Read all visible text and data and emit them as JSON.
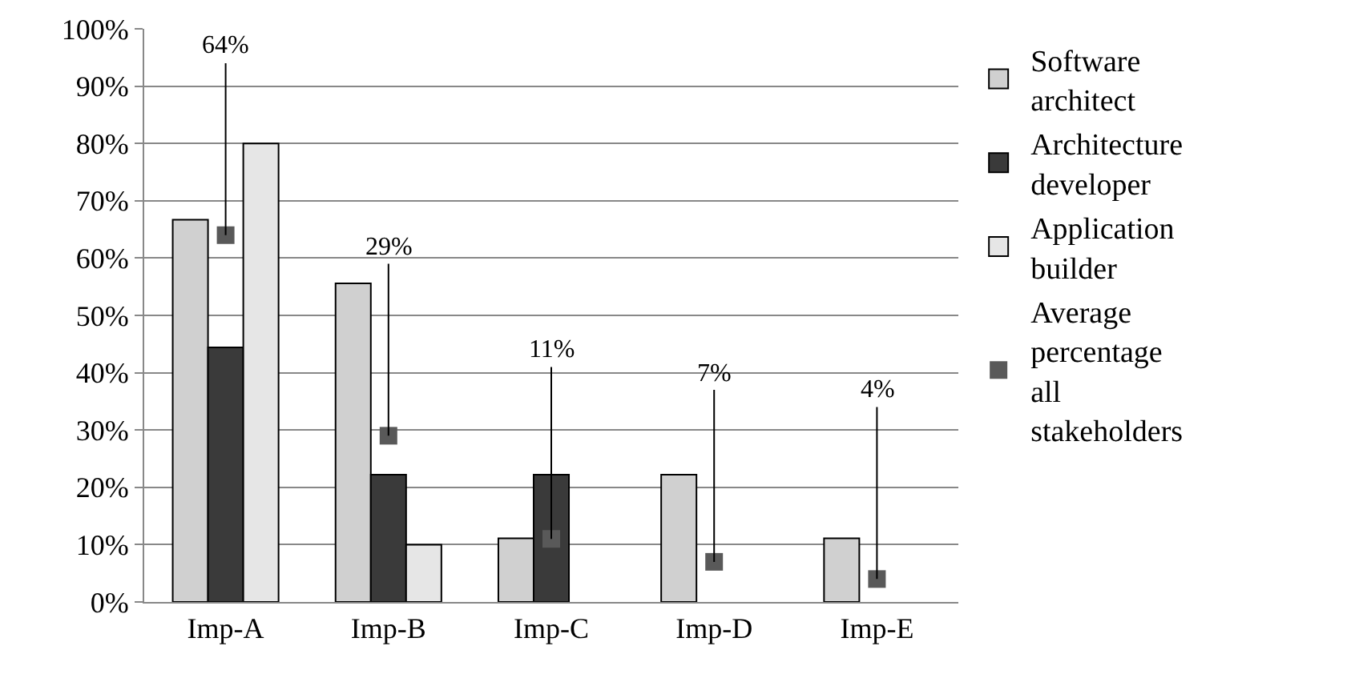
{
  "chart_data": {
    "type": "bar",
    "categories": [
      "Imp-A",
      "Imp-B",
      "Imp-C",
      "Imp-D",
      "Imp-E"
    ],
    "series": [
      {
        "name": "Software architect",
        "color": "#d0d0d0",
        "values": [
          66.7,
          55.6,
          11.1,
          22.2,
          11.1
        ]
      },
      {
        "name": "Architecture developer",
        "color": "#3a3a3a",
        "values": [
          44.4,
          22.2,
          22.2,
          0,
          0
        ]
      },
      {
        "name": "Application builder",
        "color": "#e6e6e6",
        "values": [
          80,
          10,
          0,
          0,
          0
        ]
      },
      {
        "name": "Average percentage all stakeholders",
        "type": "scatter",
        "color": "#595959",
        "values": [
          64,
          29,
          11,
          7,
          4
        ],
        "value_labels": [
          "64%",
          "29%",
          "11%",
          "7%",
          "4%"
        ]
      }
    ],
    "ylim": [
      0,
      100
    ],
    "yticks": [
      {
        "value": 0,
        "label": "0%"
      },
      {
        "value": 10,
        "label": "10%"
      },
      {
        "value": 20,
        "label": "20%"
      },
      {
        "value": 30,
        "label": "30%"
      },
      {
        "value": 40,
        "label": "40%"
      },
      {
        "value": 50,
        "label": "50%"
      },
      {
        "value": 60,
        "label": "60%"
      },
      {
        "value": 70,
        "label": "70%"
      },
      {
        "value": 80,
        "label": "80%"
      },
      {
        "value": 90,
        "label": "90%"
      },
      {
        "value": 100,
        "label": "100%"
      }
    ],
    "grid": "y",
    "legend": "right"
  }
}
